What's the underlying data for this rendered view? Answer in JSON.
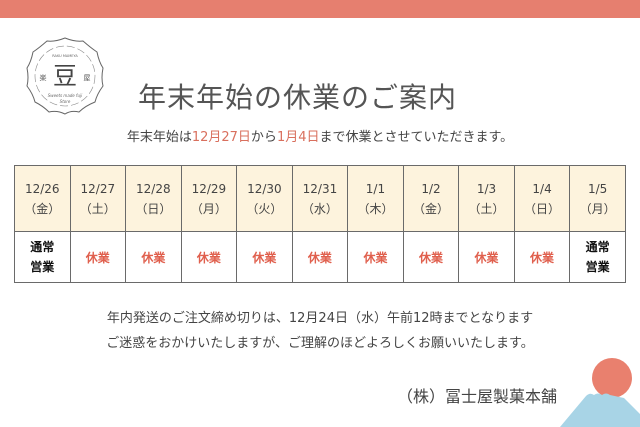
{
  "colors": {
    "accent": "#e67f6f",
    "header_bg": "#fdf3dd",
    "closed": "#e0604e"
  },
  "logo": {
    "center": "豆",
    "left": "楽",
    "right": "屋",
    "top": "RAKU MAMEYA",
    "bottom": "Sweets made fuji Store"
  },
  "title": "年末年始の休業のご案内",
  "subtitle": {
    "pre": "年末年始は",
    "date1": "12月27日",
    "mid": "から",
    "date2": "1月4日",
    "post": "まで休業とさせていただきます。"
  },
  "table": {
    "dates": [
      {
        "d": "12/26",
        "w": "（金）"
      },
      {
        "d": "12/27",
        "w": "（土）"
      },
      {
        "d": "12/28",
        "w": "（日）"
      },
      {
        "d": "12/29",
        "w": "（月）"
      },
      {
        "d": "12/30",
        "w": "（火）"
      },
      {
        "d": "12/31",
        "w": "（水）"
      },
      {
        "d": "1/1",
        "w": "（木）"
      },
      {
        "d": "1/2",
        "w": "（金）"
      },
      {
        "d": "1/3",
        "w": "（土）"
      },
      {
        "d": "1/4",
        "w": "（日）"
      },
      {
        "d": "1/5",
        "w": "（月）"
      }
    ],
    "status": [
      {
        "t1": "通常",
        "t2": "営業",
        "open": true
      },
      {
        "t1": "休業",
        "open": false
      },
      {
        "t1": "休業",
        "open": false
      },
      {
        "t1": "休業",
        "open": false
      },
      {
        "t1": "休業",
        "open": false
      },
      {
        "t1": "休業",
        "open": false
      },
      {
        "t1": "休業",
        "open": false
      },
      {
        "t1": "休業",
        "open": false
      },
      {
        "t1": "休業",
        "open": false
      },
      {
        "t1": "休業",
        "open": false
      },
      {
        "t1": "通常",
        "t2": "営業",
        "open": true
      }
    ]
  },
  "notice": [
    "年内発送のご注文締め切りは、12月24日（水）午前12時までとなります",
    "ご迷惑をおかけいたしますが、ご理解のほどよろしくお願いいたします。"
  ],
  "signature": "（株）冨士屋製菓本舗"
}
